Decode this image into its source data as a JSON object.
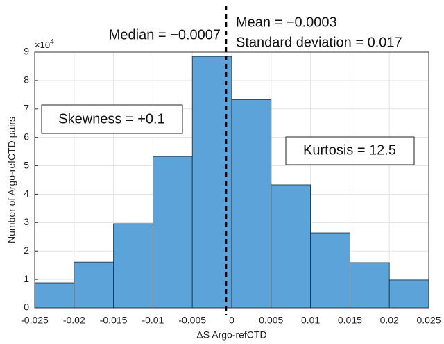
{
  "chart_data": {
    "type": "histogram",
    "xlabel": "ΔS Argo-refCTD",
    "ylabel": "Number of Argo-refCTD pairs",
    "y_exponent": {
      "base": "×10",
      "power": "4"
    },
    "bins": [
      -0.025,
      -0.02,
      -0.015,
      -0.01,
      -0.005,
      0,
      0.005,
      0.01,
      0.015,
      0.02,
      0.025
    ],
    "values": [
      0.88,
      1.61,
      2.96,
      5.33,
      8.85,
      7.33,
      4.33,
      2.64,
      1.59,
      0.98
    ],
    "color": "#5ba3d9",
    "edgecolor": "#1f2a33",
    "xlim": [
      -0.025,
      0.025
    ],
    "xticks": [
      -0.025,
      -0.02,
      -0.015,
      -0.01,
      -0.005,
      0,
      0.005,
      0.01,
      0.015,
      0.02,
      0.025
    ],
    "ylim": [
      0,
      9
    ],
    "yticks": [
      0,
      1,
      2,
      3,
      4,
      5,
      6,
      7,
      8,
      9
    ],
    "grid": true,
    "vline": {
      "x": -0.0007,
      "style": "dashed",
      "color": "#000000"
    },
    "annotations": [
      {
        "text": "Median = −0.0007",
        "boxed": false
      },
      {
        "text": "Mean = −0.0003",
        "boxed": false
      },
      {
        "text": "Standard deviation = 0.017",
        "boxed": false
      },
      {
        "text": "Skewness = +0.1",
        "boxed": true
      },
      {
        "text": "Kurtosis = 12.5",
        "boxed": true
      }
    ]
  }
}
